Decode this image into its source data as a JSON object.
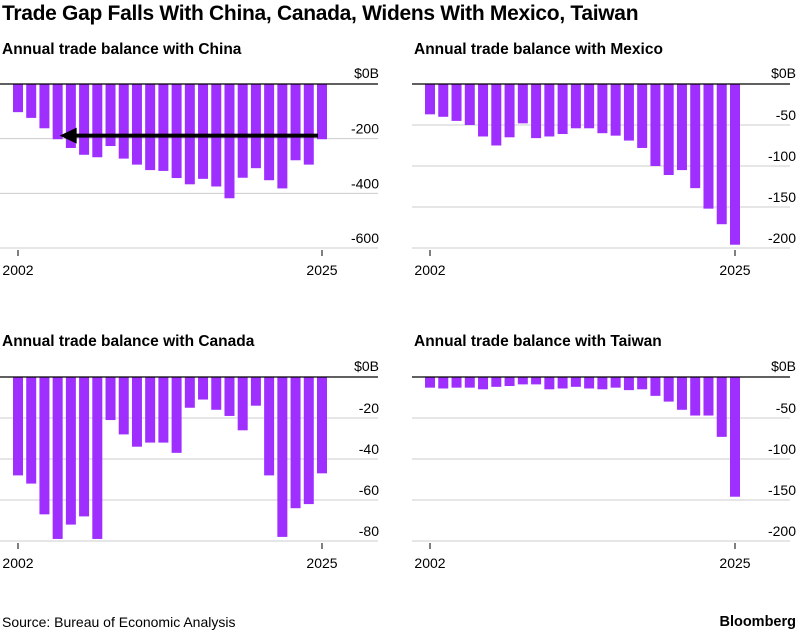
{
  "title": "Trade Gap Falls With China, Canada, Widens With Mexico, Taiwan",
  "source": "Source: Bureau of Economic Analysis",
  "brand": "Bloomberg",
  "colors": {
    "bar": "#9f2fff",
    "grid": "#cccccc",
    "zero_line": "#000000",
    "arrow": "#000000"
  },
  "chart_data": [
    {
      "type": "bar",
      "title": "Annual trade balance with China",
      "years": [
        2002,
        2003,
        2004,
        2005,
        2006,
        2007,
        2008,
        2009,
        2010,
        2011,
        2012,
        2013,
        2014,
        2015,
        2016,
        2017,
        2018,
        2019,
        2020,
        2021,
        2022,
        2023,
        2024,
        2025
      ],
      "values": [
        -103,
        -124,
        -162,
        -202,
        -234,
        -259,
        -268,
        -227,
        -273,
        -295,
        -315,
        -318,
        -344,
        -367,
        -347,
        -375,
        -418,
        -343,
        -308,
        -352,
        -382,
        -279,
        -295,
        -202
      ],
      "yticks": [
        0,
        -200,
        -400,
        -600
      ],
      "ytick_labels": [
        "$0B",
        "-200",
        "-400",
        "-600"
      ],
      "xtick_labels": [
        "2002",
        "2025"
      ],
      "ylim": [
        -600,
        0
      ],
      "annotation": {
        "type": "arrow",
        "from_year": 2025,
        "to_year": 2005,
        "value": -200
      }
    },
    {
      "type": "bar",
      "title": "Annual trade balance with Mexico",
      "years": [
        2002,
        2003,
        2004,
        2005,
        2006,
        2007,
        2008,
        2009,
        2010,
        2011,
        2012,
        2013,
        2014,
        2015,
        2016,
        2017,
        2018,
        2019,
        2020,
        2021,
        2022,
        2023,
        2024,
        2025
      ],
      "values": [
        -37,
        -40,
        -45,
        -50,
        -64,
        -75,
        -65,
        -48,
        -66,
        -64,
        -61,
        -54,
        -54,
        -60,
        -63,
        -69,
        -78,
        -100,
        -111,
        -105,
        -127,
        -152,
        -171,
        -196
      ],
      "yticks": [
        0,
        -50,
        -100,
        -150,
        -200
      ],
      "ytick_labels": [
        "$0B",
        "-50",
        "-100",
        "-150",
        "-200"
      ],
      "xtick_labels": [
        "2002",
        "2025"
      ],
      "ylim": [
        -200,
        0
      ]
    },
    {
      "type": "bar",
      "title": "Annual trade balance with Canada",
      "years": [
        2002,
        2003,
        2004,
        2005,
        2006,
        2007,
        2008,
        2009,
        2010,
        2011,
        2012,
        2013,
        2014,
        2015,
        2016,
        2017,
        2018,
        2019,
        2020,
        2021,
        2022,
        2023,
        2024,
        2025
      ],
      "values": [
        -48,
        -52,
        -67,
        -79,
        -72,
        -68,
        -79,
        -21,
        -28,
        -34,
        -32,
        -32,
        -37,
        -15,
        -11,
        -16,
        -19,
        -26,
        -14,
        -48,
        -78,
        -64,
        -62,
        -47
      ],
      "yticks": [
        0,
        -20,
        -40,
        -60,
        -80
      ],
      "ytick_labels": [
        "$0B",
        "-20",
        "-40",
        "-60",
        "-80"
      ],
      "xtick_labels": [
        "2002",
        "2025"
      ],
      "ylim": [
        -80,
        0
      ]
    },
    {
      "type": "bar",
      "title": "Annual trade balance with Taiwan",
      "years": [
        2002,
        2003,
        2004,
        2005,
        2006,
        2007,
        2008,
        2009,
        2010,
        2011,
        2012,
        2013,
        2014,
        2015,
        2016,
        2017,
        2018,
        2019,
        2020,
        2021,
        2022,
        2023,
        2024,
        2025
      ],
      "values": [
        -13,
        -14,
        -13,
        -13,
        -15,
        -12,
        -11,
        -9,
        -9,
        -15,
        -14,
        -12,
        -14,
        -15,
        -13,
        -16,
        -15,
        -23,
        -30,
        -40,
        -47,
        -47,
        -73,
        -146
      ],
      "yticks": [
        0,
        -50,
        -100,
        -150,
        -200
      ],
      "ytick_labels": [
        "$0B",
        "-50",
        "-100",
        "-150",
        "-200"
      ],
      "xtick_labels": [
        "2002",
        "2025"
      ],
      "ylim": [
        -200,
        0
      ]
    }
  ]
}
